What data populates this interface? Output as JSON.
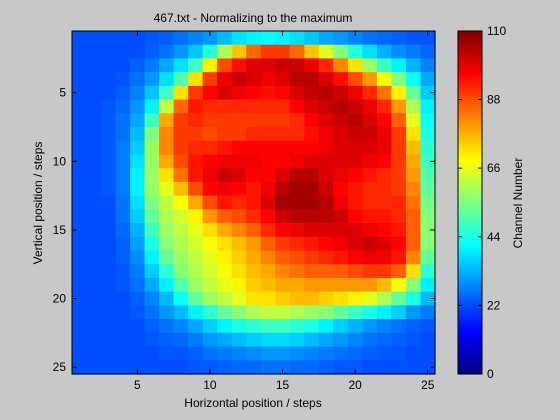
{
  "chart_data": {
    "type": "heatmap",
    "title": "467.txt - Normalizing to the maximum",
    "xlabel": "Horizontal position / steps",
    "ylabel": "Vertical position / steps",
    "xlim": [
      0.5,
      25.5
    ],
    "ylim": [
      25.5,
      0.5
    ],
    "x_ticks": [
      5,
      10,
      15,
      20,
      25
    ],
    "y_ticks": [
      5,
      10,
      15,
      20,
      25
    ],
    "colorbar": {
      "label": "Channel Number",
      "limits": [
        0,
        110
      ],
      "ticks": [
        0,
        22,
        44,
        66,
        88,
        110
      ],
      "colormap": "jet"
    },
    "grid": false,
    "values": [
      [
        22,
        22,
        22,
        22,
        22,
        23,
        24,
        26,
        28,
        30,
        34,
        38,
        40,
        41,
        40,
        38,
        35,
        32,
        30,
        28,
        26,
        25,
        24,
        23,
        23
      ],
      [
        22,
        22,
        22,
        22,
        22,
        24,
        26,
        30,
        35,
        45,
        60,
        75,
        85,
        90,
        90,
        85,
        75,
        65,
        55,
        45,
        38,
        33,
        29,
        27,
        25
      ],
      [
        22,
        22,
        22,
        22,
        24,
        27,
        32,
        38,
        48,
        70,
        88,
        95,
        100,
        100,
        102,
        102,
        98,
        92,
        82,
        72,
        58,
        48,
        40,
        33,
        28
      ],
      [
        22,
        22,
        22,
        23,
        26,
        30,
        38,
        50,
        72,
        90,
        98,
        102,
        100,
        98,
        100,
        104,
        104,
        100,
        95,
        88,
        80,
        68,
        55,
        42,
        32
      ],
      [
        22,
        22,
        22,
        24,
        28,
        35,
        48,
        72,
        90,
        96,
        100,
        98,
        96,
        95,
        96,
        100,
        103,
        104,
        102,
        98,
        92,
        84,
        70,
        52,
        36
      ],
      [
        22,
        22,
        23,
        25,
        30,
        40,
        62,
        85,
        94,
        92,
        92,
        92,
        92,
        92,
        92,
        96,
        100,
        102,
        104,
        102,
        98,
        92,
        80,
        60,
        40
      ],
      [
        22,
        22,
        23,
        26,
        32,
        48,
        78,
        90,
        92,
        90,
        90,
        90,
        90,
        90,
        90,
        92,
        96,
        100,
        102,
        104,
        100,
        96,
        86,
        66,
        42
      ],
      [
        22,
        22,
        23,
        26,
        34,
        55,
        82,
        90,
        90,
        88,
        90,
        90,
        92,
        92,
        92,
        92,
        95,
        98,
        100,
        102,
        102,
        98,
        90,
        72,
        44
      ],
      [
        22,
        22,
        23,
        27,
        36,
        58,
        82,
        90,
        92,
        92,
        94,
        96,
        96,
        96,
        96,
        96,
        96,
        98,
        100,
        100,
        100,
        98,
        90,
        76,
        46
      ],
      [
        22,
        22,
        23,
        27,
        38,
        58,
        78,
        88,
        94,
        96,
        98,
        98,
        98,
        96,
        96,
        98,
        100,
        100,
        100,
        100,
        98,
        96,
        90,
        78,
        48
      ],
      [
        22,
        22,
        23,
        27,
        40,
        58,
        72,
        84,
        94,
        98,
        102,
        100,
        96,
        96,
        100,
        104,
        104,
        100,
        98,
        96,
        94,
        92,
        90,
        80,
        50
      ],
      [
        22,
        22,
        23,
        27,
        40,
        58,
        66,
        76,
        88,
        96,
        98,
        96,
        94,
        98,
        104,
        106,
        106,
        102,
        96,
        94,
        92,
        92,
        90,
        82,
        52
      ],
      [
        22,
        22,
        22,
        26,
        38,
        55,
        62,
        68,
        78,
        88,
        94,
        92,
        94,
        100,
        106,
        106,
        106,
        104,
        98,
        94,
        92,
        92,
        92,
        84,
        54
      ],
      [
        22,
        22,
        22,
        26,
        36,
        52,
        60,
        64,
        70,
        80,
        86,
        88,
        92,
        96,
        102,
        104,
        104,
        104,
        102,
        96,
        94,
        94,
        92,
        86,
        56
      ],
      [
        22,
        22,
        22,
        25,
        33,
        48,
        58,
        62,
        66,
        72,
        78,
        82,
        86,
        92,
        96,
        98,
        100,
        100,
        100,
        100,
        98,
        96,
        94,
        86,
        56
      ],
      [
        22,
        22,
        22,
        24,
        31,
        44,
        56,
        60,
        64,
        68,
        72,
        76,
        80,
        86,
        90,
        92,
        94,
        96,
        98,
        100,
        102,
        100,
        96,
        86,
        56
      ],
      [
        22,
        22,
        22,
        24,
        29,
        40,
        52,
        58,
        62,
        66,
        70,
        74,
        78,
        82,
        86,
        88,
        90,
        92,
        94,
        96,
        98,
        98,
        94,
        82,
        52
      ],
      [
        22,
        22,
        22,
        23,
        27,
        36,
        46,
        56,
        60,
        64,
        68,
        72,
        76,
        78,
        82,
        84,
        86,
        86,
        86,
        88,
        90,
        90,
        86,
        72,
        46
      ],
      [
        22,
        22,
        22,
        23,
        26,
        32,
        40,
        50,
        58,
        62,
        66,
        70,
        74,
        76,
        78,
        78,
        80,
        80,
        80,
        80,
        80,
        76,
        68,
        56,
        40
      ],
      [
        22,
        22,
        22,
        22,
        24,
        28,
        34,
        42,
        52,
        58,
        62,
        66,
        72,
        72,
        74,
        76,
        76,
        74,
        72,
        70,
        66,
        60,
        52,
        44,
        34
      ],
      [
        22,
        22,
        22,
        22,
        23,
        26,
        30,
        34,
        40,
        46,
        52,
        56,
        60,
        62,
        62,
        60,
        58,
        56,
        52,
        48,
        44,
        40,
        36,
        30,
        27
      ],
      [
        22,
        22,
        22,
        22,
        22,
        24,
        26,
        28,
        32,
        36,
        40,
        44,
        46,
        48,
        48,
        46,
        44,
        40,
        36,
        33,
        30,
        28,
        26,
        24,
        23
      ],
      [
        22,
        22,
        22,
        22,
        22,
        23,
        24,
        25,
        27,
        30,
        32,
        34,
        36,
        37,
        37,
        36,
        34,
        32,
        30,
        28,
        26,
        25,
        24,
        23,
        22
      ],
      [
        22,
        22,
        22,
        22,
        22,
        22,
        23,
        23,
        24,
        26,
        27,
        28,
        29,
        30,
        30,
        29,
        28,
        27,
        26,
        25,
        24,
        23,
        23,
        22,
        22
      ],
      [
        22,
        22,
        22,
        22,
        22,
        22,
        22,
        22,
        23,
        23,
        24,
        25,
        25,
        26,
        26,
        25,
        25,
        24,
        23,
        23,
        22,
        22,
        22,
        22,
        22
      ]
    ]
  }
}
